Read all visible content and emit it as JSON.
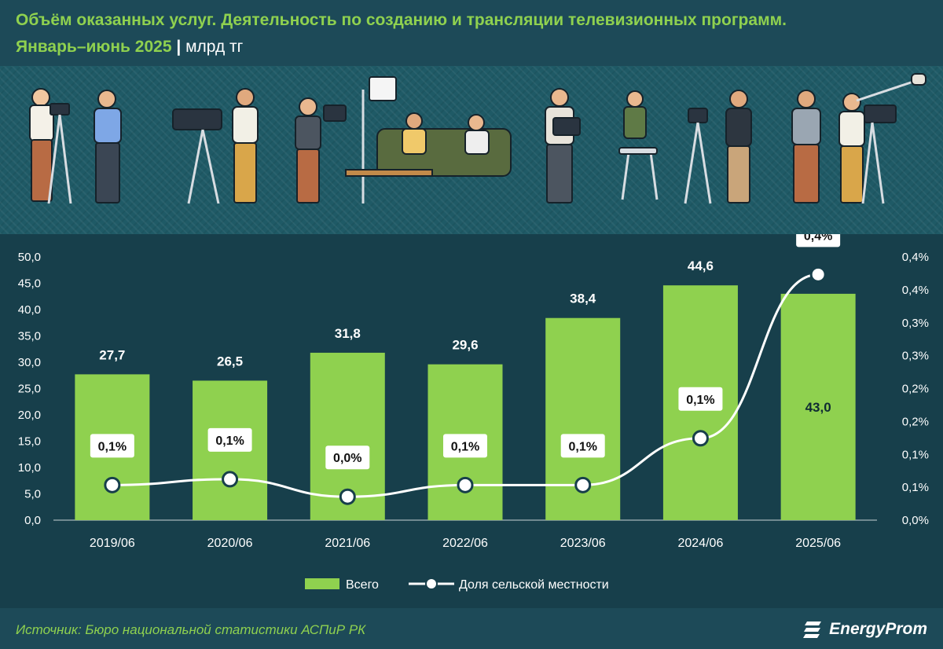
{
  "header": {
    "title": "Объём оказанных услуг. Деятельность по созданию и трансляции телевизионных программ.",
    "subtitle": "Январь–июнь 2025",
    "separator": "|",
    "unit": "млрд тг"
  },
  "footer": {
    "source": "Источник: Бюро национальной статистики АСПиР РК",
    "brand": "EnergyProm"
  },
  "colors": {
    "bar": "#8fd14f",
    "line": "#ffffff",
    "text": "#ffffff",
    "accent": "#8fd14f"
  },
  "chart_data": {
    "type": "bar",
    "categories": [
      "2019/06",
      "2020/06",
      "2021/06",
      "2022/06",
      "2023/06",
      "2024/06",
      "2025/06"
    ],
    "series": [
      {
        "name": "Всего",
        "type": "bar",
        "axis": "left",
        "values": [
          27.7,
          26.5,
          31.8,
          29.6,
          38.4,
          44.6,
          43.0
        ],
        "labels": [
          "27,7",
          "26,5",
          "31,8",
          "29,6",
          "38,4",
          "44,6",
          "43,0"
        ]
      },
      {
        "name": "Доля сельской местности",
        "type": "line",
        "axis": "right",
        "values": [
          0.06,
          0.07,
          0.04,
          0.06,
          0.06,
          0.14,
          0.42
        ],
        "labels": [
          "0,1%",
          "0,1%",
          "0,0%",
          "0,1%",
          "0,1%",
          "0,1%",
          "0,4%"
        ]
      }
    ],
    "y_left": {
      "ylim": [
        0,
        50
      ],
      "ticks": [
        "0,0",
        "5,0",
        "10,0",
        "15,0",
        "20,0",
        "25,0",
        "30,0",
        "35,0",
        "40,0",
        "45,0",
        "50,0"
      ]
    },
    "y_right": {
      "ylim": [
        0,
        0.45
      ],
      "ticks": [
        "0,0%",
        "0,1%",
        "0,1%",
        "0,2%",
        "0,2%",
        "0,3%",
        "0,3%",
        "0,4%",
        "0,4%"
      ]
    },
    "legend": {
      "placement": "bottom",
      "items": [
        "Всего",
        "Доля сельской местности"
      ]
    },
    "grid": false
  }
}
